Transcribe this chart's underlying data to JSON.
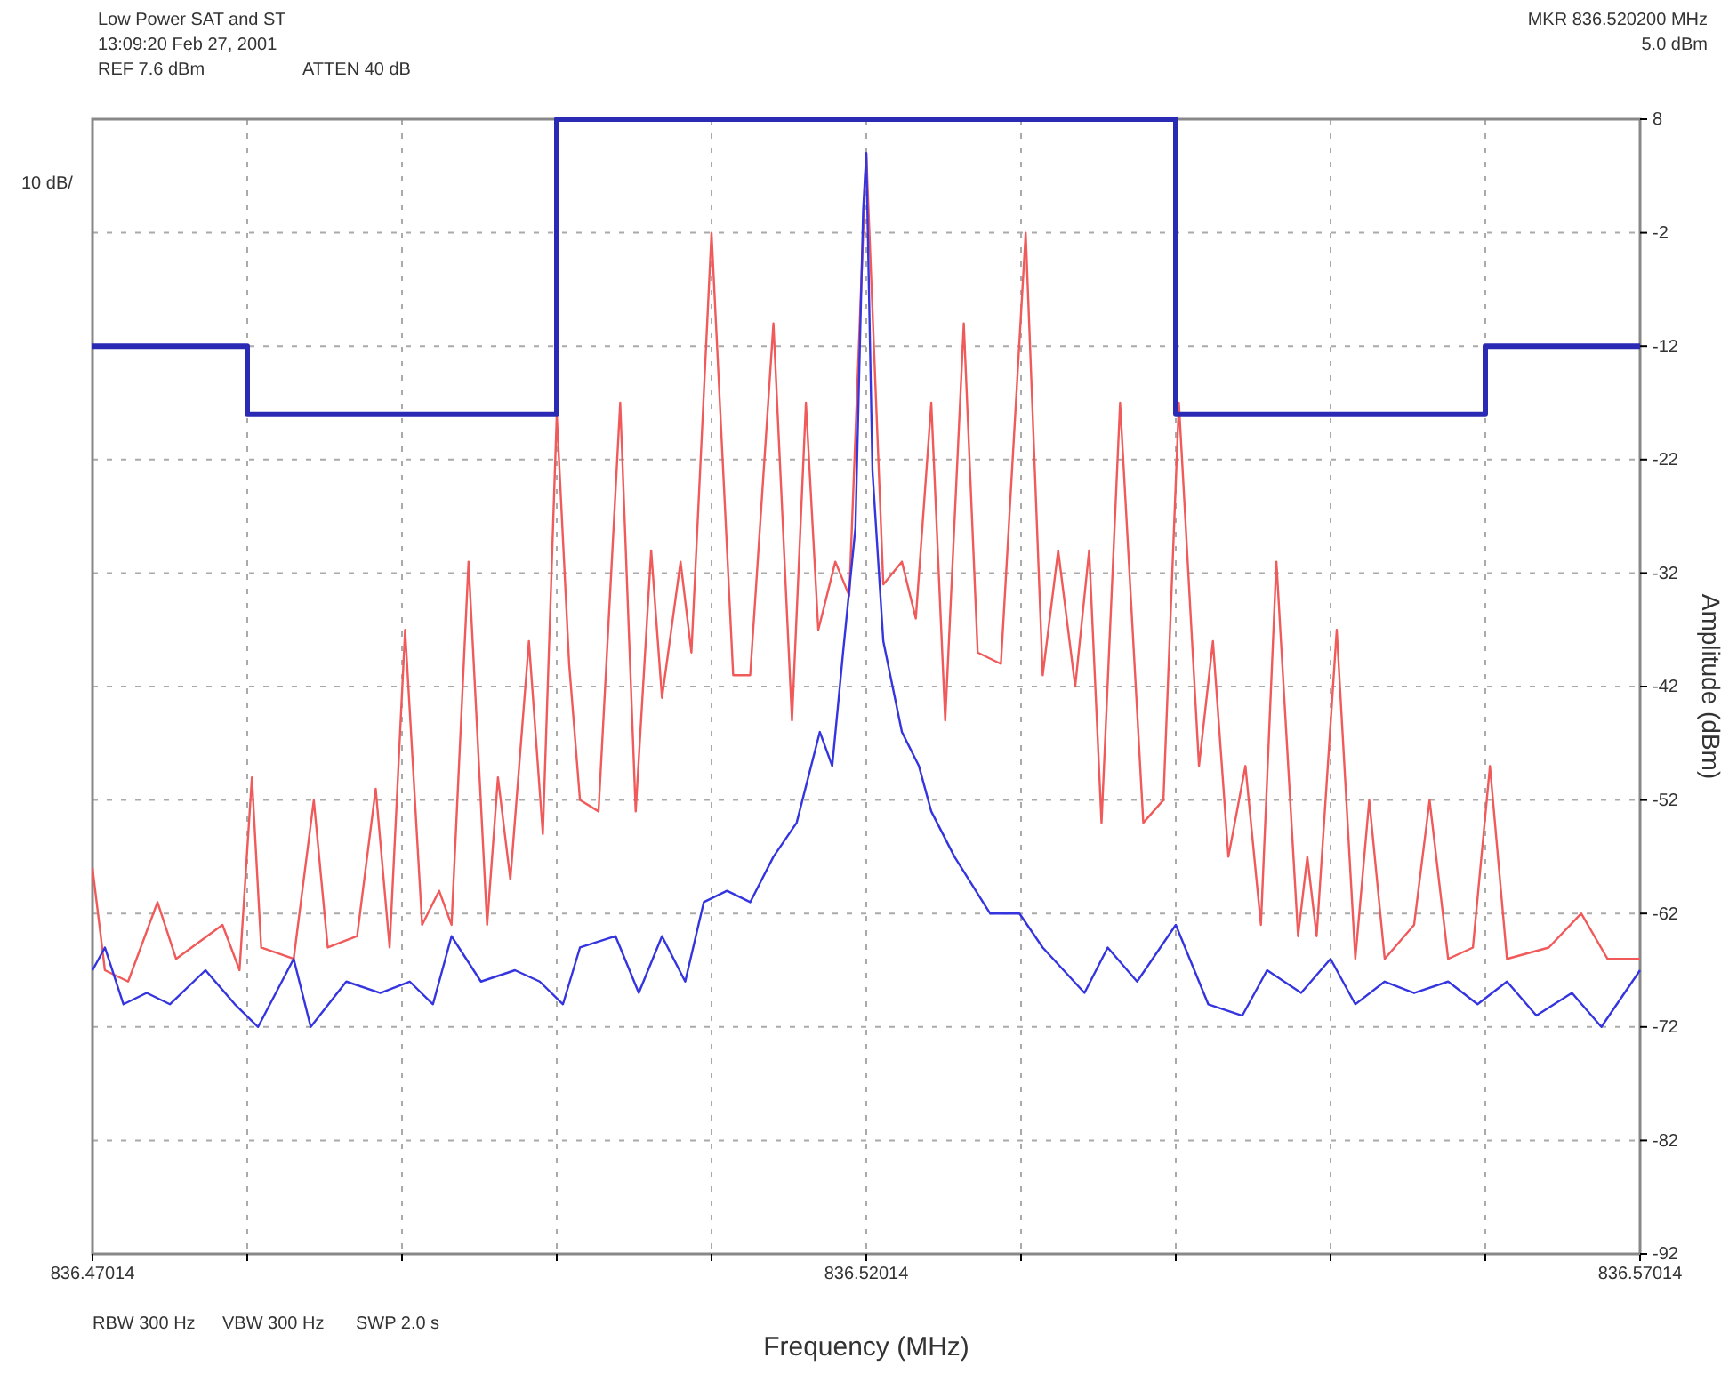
{
  "chart_data": {
    "type": "line",
    "xlabel": "Frequency (MHz)",
    "ylabel": "Amplitude (dBm)",
    "annotations": [
      "Low Power SAT and ST",
      "13:09:20 Feb 27, 2001",
      "REF 7.6 dBm",
      "ATTEN 40 dB",
      "10 dB/",
      "MKR 836.520200 MHz",
      "5.0 dBm",
      "RBW 300 Hz",
      "VBW 300 Hz",
      "SWP 2.0 s"
    ],
    "xlim": [
      836.47014,
      836.57014
    ],
    "xticks": [
      836.47014,
      {
        "value": 836.48014,
        "label": null
      },
      {
        "value": 836.49014,
        "label": null
      },
      {
        "value": 836.50014,
        "label": null
      },
      {
        "value": 836.51014,
        "label": null
      },
      836.52014,
      {
        "value": 836.53014,
        "label": null
      },
      {
        "value": 836.54014,
        "label": null
      },
      {
        "value": 836.55014,
        "label": null
      },
      {
        "value": 836.56014,
        "label": null
      },
      836.57014
    ],
    "ylim": [
      -92,
      8
    ],
    "yticks": [
      -92,
      -82,
      -72,
      -62,
      -52,
      -42,
      -32,
      -22,
      -12,
      -2,
      8
    ],
    "grid": true,
    "series": [
      {
        "color": "#f05a5a",
        "x": [
          836.47014,
          836.47094,
          836.47244,
          836.47434,
          836.47554,
          836.47854,
          836.47964,
          836.48044,
          836.48104,
          836.48314,
          836.48444,
          836.48534,
          836.48724,
          836.48844,
          836.48934,
          836.49034,
          836.49144,
          836.49254,
          836.49334,
          836.49444,
          836.49564,
          836.49634,
          836.49714,
          836.49834,
          836.49924,
          836.50014,
          836.50094,
          836.50164,
          836.50284,
          836.50424,
          836.50524,
          836.50624,
          836.50694,
          836.50814,
          836.50884,
          836.51014,
          836.51154,
          836.51264,
          836.51414,
          836.51534,
          836.51624,
          836.51704,
          836.51814,
          836.51904,
          836.52014,
          836.52124,
          836.52244,
          836.52334,
          836.52434,
          836.52524,
          836.52644,
          836.52734,
          836.52884,
          836.53044,
          836.53154,
          836.53254,
          836.53364,
          836.53454,
          836.53534,
          836.53654,
          836.53804,
          836.53934,
          836.54034,
          836.54164,
          836.54254,
          836.54354,
          836.54464,
          836.54564,
          836.54664,
          836.54804,
          836.54864,
          836.54924,
          836.55054,
          836.55174,
          836.55264,
          836.55364,
          836.55554,
          836.55654,
          836.55774,
          836.55934,
          836.56044,
          836.56154,
          836.56424,
          836.56634,
          836.56804,
          836.57014
        ],
        "values": [
          -58,
          -67,
          -68,
          -61,
          -66,
          -63,
          -67,
          -50,
          -65,
          -66,
          -52,
          -65,
          -64,
          -51,
          -65,
          -37,
          -63,
          -60,
          -63,
          -31,
          -63,
          -50,
          -59,
          -38,
          -55,
          -18,
          -40,
          -52,
          -53,
          -17,
          -53,
          -30,
          -43,
          -31,
          -39,
          -2,
          -41,
          -41,
          -10,
          -45,
          -17,
          -37,
          -31,
          -34,
          5,
          -33,
          -31,
          -36,
          -17,
          -45,
          -10,
          -39,
          -40,
          -2,
          -41,
          -30,
          -42,
          -30,
          -54,
          -17,
          -54,
          -52,
          -17,
          -49,
          -38,
          -57,
          -49,
          -63,
          -31,
          -64,
          -57,
          -64,
          -37,
          -66,
          -52,
          -66,
          -63,
          -52,
          -66,
          -65,
          -49,
          -66,
          -65,
          -62,
          -66,
          -66
        ]
      },
      {
        "color": "#3535e0",
        "x": [
          836.47014,
          836.47094,
          836.47214,
          836.47364,
          836.47514,
          836.47744,
          836.47934,
          836.48084,
          836.48314,
          836.48424,
          836.48654,
          836.48874,
          836.49064,
          836.49214,
          836.49334,
          836.49524,
          836.49744,
          836.49904,
          836.50054,
          836.50164,
          836.50394,
          836.50544,
          836.50694,
          836.50844,
          836.50964,
          836.51114,
          836.51264,
          836.51414,
          836.51564,
          836.51714,
          836.51794,
          836.51864,
          836.51944,
          836.51994,
          836.52014,
          836.52054,
          836.52124,
          836.52244,
          836.52354,
          836.52434,
          836.52584,
          836.52814,
          836.53004,
          836.53154,
          836.53424,
          836.53574,
          836.53764,
          836.54014,
          836.54224,
          836.54444,
          836.54604,
          836.54824,
          836.55014,
          836.55174,
          836.55364,
          836.55554,
          836.55774,
          836.55964,
          836.56154,
          836.56344,
          836.56574,
          836.56764,
          836.57014
        ],
        "values": [
          -67,
          -65,
          -70,
          -69,
          -70,
          -67,
          -70,
          -72,
          -66,
          -72,
          -68,
          -69,
          -68,
          -70,
          -64,
          -68,
          -67,
          -68,
          -70,
          -65,
          -64,
          -69,
          -64,
          -68,
          -61,
          -60,
          -61,
          -57,
          -54,
          -46,
          -49,
          -39,
          -28,
          0,
          5,
          -23,
          -38,
          -46,
          -49,
          -53,
          -57,
          -62,
          -62,
          -65,
          -69,
          -65,
          -68,
          -63,
          -70,
          -71,
          -67,
          -69,
          -66,
          -70,
          -68,
          -69,
          -68,
          -70,
          -68,
          -71,
          -69,
          -72,
          -67
        ]
      },
      {
        "type": "step",
        "color": "#2a2ab4",
        "x": [
          836.47014,
          836.48014,
          836.50014,
          836.54014,
          836.56014,
          836.57014
        ],
        "values": [
          -12,
          -18,
          8,
          -18,
          -12,
          -12
        ]
      }
    ]
  }
}
